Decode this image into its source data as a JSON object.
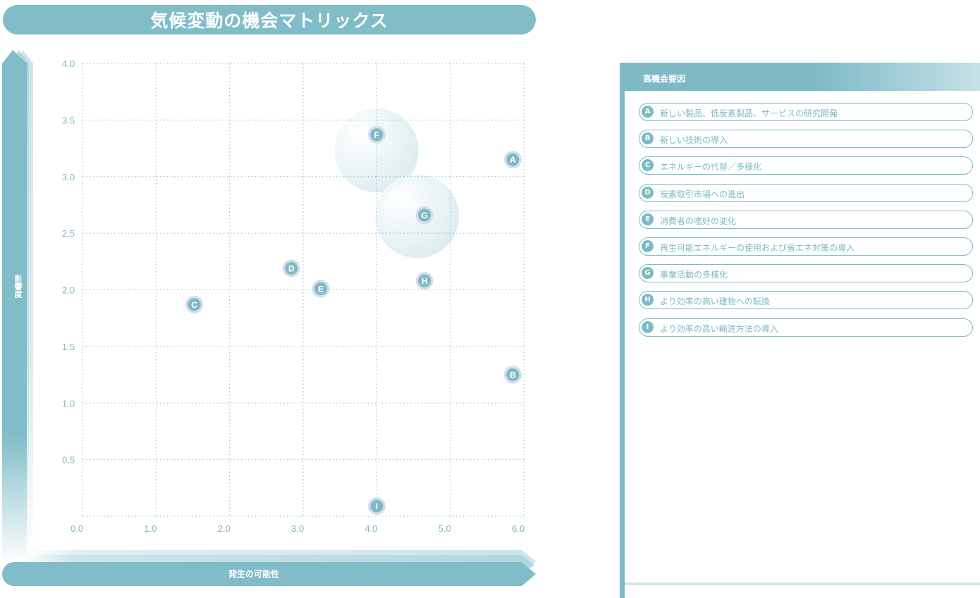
{
  "title": "気候変動の機会マトリックス",
  "y_axis_label": "影響度",
  "x_axis_label": "発生の可能性",
  "colors": {
    "accent": "#7dbac6",
    "label": "#7fb6c2",
    "grid": "#7fc0cc"
  },
  "chart_data": {
    "type": "scatter",
    "xlim": [
      0,
      6
    ],
    "ylim": [
      0,
      4
    ],
    "x_ticks": [
      "0.0",
      "1.0",
      "2.0",
      "3.0",
      "4.0",
      "5.0",
      "6.0"
    ],
    "y_ticks": [
      "0.5",
      "1.0",
      "1.5",
      "2.0",
      "2.5",
      "3.0",
      "3.5",
      "4.0"
    ],
    "grid": true,
    "points": [
      {
        "id": "A",
        "x": 5.85,
        "y": 3.15
      },
      {
        "id": "B",
        "x": 5.85,
        "y": 1.25
      },
      {
        "id": "C",
        "x": 1.52,
        "y": 1.87
      },
      {
        "id": "D",
        "x": 2.84,
        "y": 2.19
      },
      {
        "id": "E",
        "x": 3.24,
        "y": 2.01
      },
      {
        "id": "F",
        "x": 4.0,
        "y": 3.37
      },
      {
        "id": "G",
        "x": 4.65,
        "y": 2.66
      },
      {
        "id": "H",
        "x": 4.65,
        "y": 2.08
      },
      {
        "id": "I",
        "x": 4.0,
        "y": 0.09
      }
    ],
    "highlight_circles": [
      {
        "x": 4.0,
        "y": 3.23,
        "r": 0.57
      },
      {
        "x": 4.55,
        "y": 2.65,
        "r": 0.57
      }
    ]
  },
  "legend": {
    "title": "高機会要因",
    "items": [
      {
        "id": "A",
        "label": "新しい製品、低炭素製品、サービスの研究開発"
      },
      {
        "id": "B",
        "label": "新しい技術の導入"
      },
      {
        "id": "C",
        "label": "エネルギーの代替／多様化"
      },
      {
        "id": "D",
        "label": "炭素取引市場への進出"
      },
      {
        "id": "E",
        "label": "消費者の嗜好の変化"
      },
      {
        "id": "F",
        "label": "再生可能エネルギーの使用および省エネ対策の導入"
      },
      {
        "id": "G",
        "label": "事業活動の多様化"
      },
      {
        "id": "H",
        "label": "より効率の高い建物への転換"
      },
      {
        "id": "I",
        "label": "より効率の高い輸送方法の導入"
      }
    ]
  }
}
